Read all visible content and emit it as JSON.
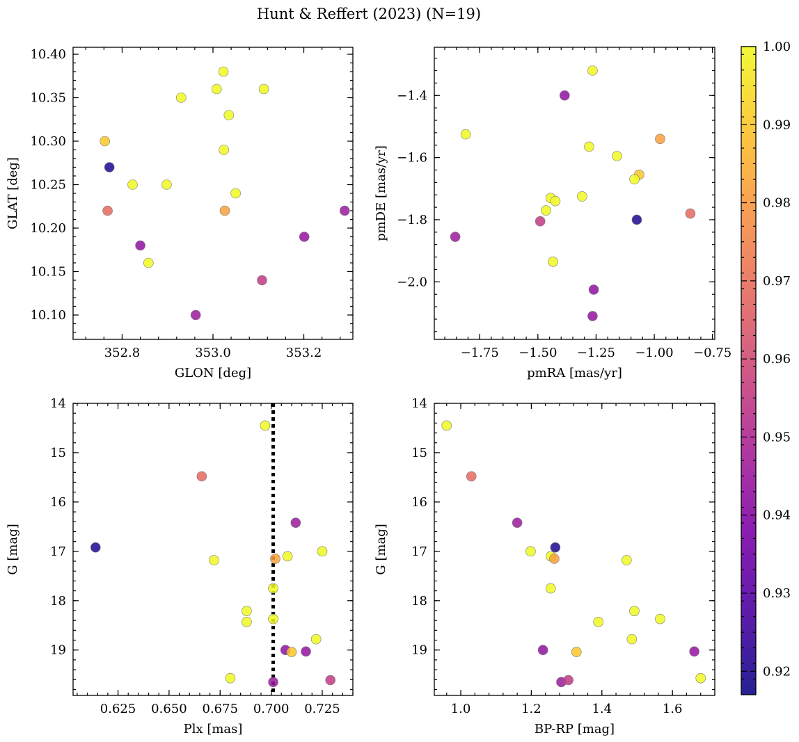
{
  "title": "Hunt & Reffert (2023) (N=19)",
  "colorbar": {
    "min": 0.917,
    "max": 1.0,
    "ticks": [
      0.92,
      0.93,
      0.94,
      0.95,
      0.96,
      0.97,
      0.98,
      0.99,
      1.0
    ],
    "tick_labels": [
      "0.92",
      "0.93",
      "0.94",
      "0.95",
      "0.96",
      "0.97",
      "0.98",
      "0.99",
      "1.00"
    ],
    "colormap": "plasma"
  },
  "chart_data": [
    {
      "type": "scatter",
      "xlabel": "GLON [deg]",
      "ylabel": "GLAT [deg]",
      "xlim": [
        352.692,
        353.308
      ],
      "ylim": [
        10.072,
        10.408
      ],
      "x_invert": false,
      "y_invert": false,
      "xticks": [
        352.8,
        353.0,
        353.2
      ],
      "xtick_labels": [
        "352.8",
        "353.0",
        "353.2"
      ],
      "xminor_step": 0.04,
      "yticks": [
        10.1,
        10.15,
        10.2,
        10.25,
        10.3,
        10.35,
        10.4
      ],
      "ytick_labels": [
        "10.10",
        "10.15",
        "10.20",
        "10.25",
        "10.30",
        "10.35",
        "10.40"
      ],
      "yminor_step": 0.01,
      "points": [
        {
          "x": 352.762,
          "y": 10.3,
          "c": 0.99
        },
        {
          "x": 352.772,
          "y": 10.27,
          "c": 0.92
        },
        {
          "x": 352.768,
          "y": 10.22,
          "c": 0.968
        },
        {
          "x": 352.823,
          "y": 10.25,
          "c": 1.0
        },
        {
          "x": 352.84,
          "y": 10.18,
          "c": 0.942
        },
        {
          "x": 352.858,
          "y": 10.16,
          "c": 1.0
        },
        {
          "x": 352.898,
          "y": 10.25,
          "c": 1.0
        },
        {
          "x": 352.93,
          "y": 10.35,
          "c": 1.0
        },
        {
          "x": 352.962,
          "y": 10.1,
          "c": 0.945
        },
        {
          "x": 353.008,
          "y": 10.36,
          "c": 1.0
        },
        {
          "x": 353.023,
          "y": 10.38,
          "c": 1.0
        },
        {
          "x": 353.024,
          "y": 10.29,
          "c": 1.0
        },
        {
          "x": 353.026,
          "y": 10.22,
          "c": 0.982
        },
        {
          "x": 353.035,
          "y": 10.33,
          "c": 1.0
        },
        {
          "x": 353.05,
          "y": 10.24,
          "c": 1.0
        },
        {
          "x": 353.112,
          "y": 10.36,
          "c": 1.0
        },
        {
          "x": 353.108,
          "y": 10.14,
          "c": 0.955
        },
        {
          "x": 353.201,
          "y": 10.19,
          "c": 0.943
        },
        {
          "x": 353.29,
          "y": 10.22,
          "c": 0.945
        }
      ]
    },
    {
      "type": "scatter",
      "xlabel": "pmRA [mas/yr]",
      "ylabel": "pmDE [mas/yr]",
      "xlim": [
        -1.945,
        -0.74
      ],
      "ylim": [
        -2.185,
        -1.245
      ],
      "x_invert": false,
      "y_invert": false,
      "xticks": [
        -1.75,
        -1.5,
        -1.25,
        -1.0,
        -0.75
      ],
      "xtick_labels": [
        "−1.75",
        "−1.50",
        "−1.25",
        "−1.00",
        "−0.75"
      ],
      "xminor_step": 0.05,
      "yticks": [
        -2.0,
        -1.8,
        -1.6,
        -1.4
      ],
      "ytick_labels": [
        "−2.0",
        "−1.8",
        "−1.6",
        "−1.4"
      ],
      "yminor_step": 0.04,
      "points": [
        {
          "x": -1.265,
          "y": -1.32,
          "c": 1.0
        },
        {
          "x": -1.385,
          "y": -1.4,
          "c": 0.942
        },
        {
          "x": -1.81,
          "y": -1.525,
          "c": 1.0
        },
        {
          "x": -0.975,
          "y": -1.54,
          "c": 0.982
        },
        {
          "x": -1.28,
          "y": -1.565,
          "c": 1.0
        },
        {
          "x": -1.16,
          "y": -1.595,
          "c": 1.0
        },
        {
          "x": -1.065,
          "y": -1.655,
          "c": 0.99
        },
        {
          "x": -1.085,
          "y": -1.67,
          "c": 1.0
        },
        {
          "x": -1.31,
          "y": -1.725,
          "c": 1.0
        },
        {
          "x": -1.445,
          "y": -1.73,
          "c": 1.0
        },
        {
          "x": -1.425,
          "y": -1.74,
          "c": 1.0
        },
        {
          "x": -1.465,
          "y": -1.77,
          "c": 1.0
        },
        {
          "x": -0.845,
          "y": -1.78,
          "c": 0.968
        },
        {
          "x": -1.075,
          "y": -1.8,
          "c": 0.92
        },
        {
          "x": -1.49,
          "y": -1.805,
          "c": 0.955
        },
        {
          "x": -1.855,
          "y": -1.855,
          "c": 0.945
        },
        {
          "x": -1.435,
          "y": -1.935,
          "c": 1.0
        },
        {
          "x": -1.26,
          "y": -2.025,
          "c": 0.942
        },
        {
          "x": -1.265,
          "y": -2.11,
          "c": 0.943
        }
      ]
    },
    {
      "type": "scatter",
      "xlabel": "Plx [mas]",
      "ylabel": "G [mag]",
      "xlim": [
        0.603,
        0.74
      ],
      "ylim": [
        14.0,
        19.92
      ],
      "x_invert": false,
      "y_invert": true,
      "xticks": [
        0.625,
        0.65,
        0.675,
        0.7,
        0.725
      ],
      "xtick_labels": [
        "0.625",
        "0.650",
        "0.675",
        "0.700",
        "0.725"
      ],
      "xminor_step": 0.005,
      "yticks": [
        14,
        15,
        16,
        17,
        18,
        19
      ],
      "ytick_labels": [
        "14",
        "15",
        "16",
        "17",
        "18",
        "19"
      ],
      "yminor_step": 0.2,
      "vline": {
        "x": 0.701,
        "style": "dotted"
      },
      "points": [
        {
          "x": 0.697,
          "y": 14.45,
          "c": 1.0
        },
        {
          "x": 0.666,
          "y": 15.48,
          "c": 0.968
        },
        {
          "x": 0.712,
          "y": 16.42,
          "c": 0.945
        },
        {
          "x": 0.614,
          "y": 16.92,
          "c": 0.92
        },
        {
          "x": 0.725,
          "y": 17.0,
          "c": 1.0
        },
        {
          "x": 0.708,
          "y": 17.1,
          "c": 1.0
        },
        {
          "x": 0.672,
          "y": 17.18,
          "c": 1.0
        },
        {
          "x": 0.702,
          "y": 17.15,
          "c": 0.982
        },
        {
          "x": 0.701,
          "y": 17.75,
          "c": 1.0
        },
        {
          "x": 0.688,
          "y": 18.21,
          "c": 1.0
        },
        {
          "x": 0.701,
          "y": 18.37,
          "c": 1.0
        },
        {
          "x": 0.688,
          "y": 18.43,
          "c": 1.0
        },
        {
          "x": 0.722,
          "y": 18.78,
          "c": 1.0
        },
        {
          "x": 0.707,
          "y": 19.0,
          "c": 0.942
        },
        {
          "x": 0.71,
          "y": 19.04,
          "c": 0.99
        },
        {
          "x": 0.717,
          "y": 19.03,
          "c": 0.943
        },
        {
          "x": 0.68,
          "y": 19.57,
          "c": 1.0
        },
        {
          "x": 0.701,
          "y": 19.65,
          "c": 0.945
        },
        {
          "x": 0.729,
          "y": 19.61,
          "c": 0.955
        }
      ]
    },
    {
      "type": "scatter",
      "xlabel": "BP-RP [mag]",
      "ylabel": "G [mag]",
      "xlim": [
        0.925,
        1.72
      ],
      "ylim": [
        14.0,
        19.92
      ],
      "x_invert": false,
      "y_invert": true,
      "xticks": [
        1.0,
        1.2,
        1.4,
        1.6
      ],
      "xtick_labels": [
        "1.0",
        "1.2",
        "1.4",
        "1.6"
      ],
      "xminor_step": 0.04,
      "yticks": [
        14,
        15,
        16,
        17,
        18,
        19
      ],
      "ytick_labels": [
        "14",
        "15",
        "16",
        "17",
        "18",
        "19"
      ],
      "yminor_step": 0.2,
      "points": [
        {
          "x": 0.96,
          "y": 14.45,
          "c": 1.0
        },
        {
          "x": 1.03,
          "y": 15.48,
          "c": 0.968
        },
        {
          "x": 1.16,
          "y": 16.42,
          "c": 0.945
        },
        {
          "x": 1.268,
          "y": 16.92,
          "c": 0.92
        },
        {
          "x": 1.198,
          "y": 17.0,
          "c": 1.0
        },
        {
          "x": 1.255,
          "y": 17.1,
          "c": 1.0
        },
        {
          "x": 1.265,
          "y": 17.15,
          "c": 0.982
        },
        {
          "x": 1.47,
          "y": 17.18,
          "c": 1.0
        },
        {
          "x": 1.255,
          "y": 17.75,
          "c": 1.0
        },
        {
          "x": 1.492,
          "y": 18.21,
          "c": 1.0
        },
        {
          "x": 1.565,
          "y": 18.37,
          "c": 1.0
        },
        {
          "x": 1.39,
          "y": 18.43,
          "c": 1.0
        },
        {
          "x": 1.485,
          "y": 18.78,
          "c": 1.0
        },
        {
          "x": 1.233,
          "y": 19.0,
          "c": 0.942
        },
        {
          "x": 1.328,
          "y": 19.04,
          "c": 0.99
        },
        {
          "x": 1.662,
          "y": 19.03,
          "c": 0.943
        },
        {
          "x": 1.68,
          "y": 19.57,
          "c": 1.0
        },
        {
          "x": 1.285,
          "y": 19.65,
          "c": 0.945
        },
        {
          "x": 1.305,
          "y": 19.61,
          "c": 0.955
        }
      ]
    }
  ]
}
